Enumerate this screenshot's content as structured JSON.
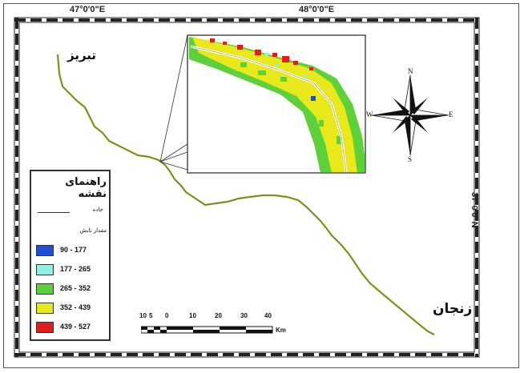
{
  "coordinates": {
    "lon_left": "47°0'0\"E",
    "lon_right": "48°0'0\"E",
    "lat_right": "37°0'0\"N"
  },
  "cities": {
    "tabriz": "تبریز",
    "zanjan": "زنجان"
  },
  "legend": {
    "title": "راهنمای نقشه",
    "road_label": "جاده",
    "subtitle": "مقدار تابش",
    "classes": [
      {
        "range": "90 - 177",
        "color": "#1f4fd8"
      },
      {
        "range": "177 - 265",
        "color": "#8ff0e8"
      },
      {
        "range": "265 - 352",
        "color": "#5cd13a"
      },
      {
        "range": "352 - 439",
        "color": "#e8e81a"
      },
      {
        "range": "439 - 527",
        "color": "#e41c1c"
      }
    ]
  },
  "compass": {
    "n": "N",
    "s": "S",
    "e": "E",
    "w": "W"
  },
  "scale": {
    "ticks": [
      "10",
      "5",
      "0",
      "10",
      "20",
      "30",
      "40"
    ],
    "unit": "Km"
  },
  "colors": {
    "road_line": "#8aa11a",
    "frame": "#333333"
  }
}
